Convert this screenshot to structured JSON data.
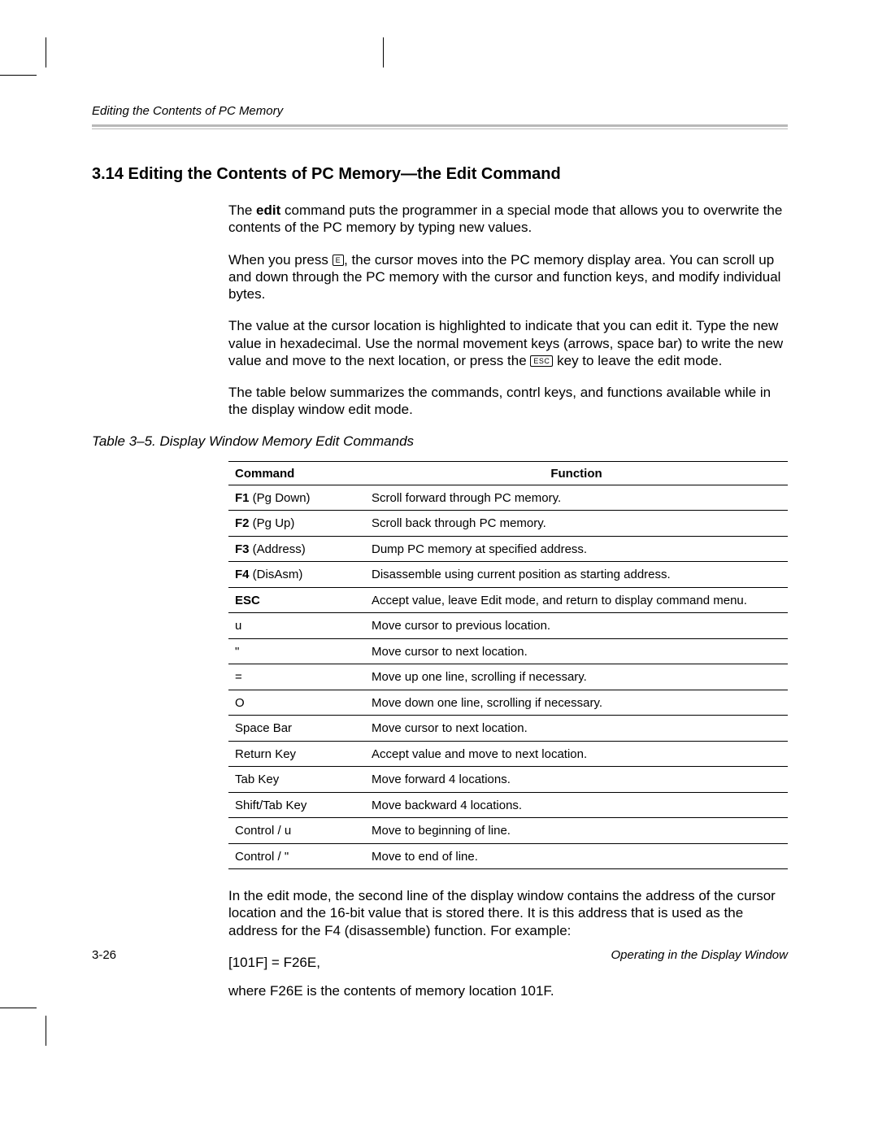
{
  "runningHead": "Editing the Contents of PC Memory",
  "heading": "3.14  Editing the Contents of PC Memory—the Edit Command",
  "para1_a": "The ",
  "para1_bold": "edit",
  "para1_b": " command puts the programmer in a special mode that allows you to overwrite the contents of the PC memory by typing new values.",
  "para2_a": "When you press ",
  "keycap_E": "E",
  "para2_b": ", the cursor moves into the PC memory display area. You can scroll up and down through the PC memory with the cursor and function keys, and modify individual bytes.",
  "para3_a": "The value at the cursor location is highlighted to indicate that you can edit it. Type the new value in hexadecimal. Use the normal movement keys (arrows, space bar) to write the new value and move to the next location, or press the ",
  "keycap_ESC": "ESC",
  "para3_b": " key to leave the edit mode.",
  "para4": "The table below summarizes the commands, contrl keys, and functions available while in the display window edit mode.",
  "tableCaption": "Table 3–5. Display Window Memory Edit Commands",
  "table": {
    "head": {
      "command": "Command",
      "function": "Function"
    },
    "rows": [
      {
        "cmd_b": "F1",
        "cmd_r": " (Pg Down)",
        "fn": "Scroll forward through PC memory."
      },
      {
        "cmd_b": "F2",
        "cmd_r": " (Pg Up)",
        "fn": "Scroll back through PC memory."
      },
      {
        "cmd_b": "F3",
        "cmd_r": " (Address)",
        "fn": "Dump PC memory at specified address."
      },
      {
        "cmd_b": "F4",
        "cmd_r": " (DisAsm)",
        "fn": "Disassemble using current position as starting address."
      },
      {
        "cmd_b": "ESC",
        "cmd_r": "",
        "fn": "Accept value, leave Edit mode, and return to display command menu."
      },
      {
        "cmd_b": "",
        "cmd_r": "u",
        "fn": "Move cursor to previous location."
      },
      {
        "cmd_b": "",
        "cmd_r": "\"",
        "fn": "Move cursor to next location."
      },
      {
        "cmd_b": "",
        "cmd_r": "=",
        "fn": "Move up one line, scrolling if necessary."
      },
      {
        "cmd_b": "",
        "cmd_r": "O",
        "fn": "Move down one line, scrolling if necessary."
      },
      {
        "cmd_b": "",
        "cmd_r": "Space Bar",
        "fn": "Move cursor to next location."
      },
      {
        "cmd_b": "",
        "cmd_r": "Return Key",
        "fn": "Accept value and move to next location."
      },
      {
        "cmd_b": "",
        "cmd_r": "Tab Key",
        "fn": "Move forward 4 locations."
      },
      {
        "cmd_b": "",
        "cmd_r": "Shift/Tab Key",
        "fn": "Move backward 4 locations."
      },
      {
        "cmd_b": "",
        "cmd_r": "Control / u",
        "fn": "Move to beginning of line."
      },
      {
        "cmd_b": "",
        "cmd_r": "Control / \"",
        "fn": "Move to end of line."
      }
    ]
  },
  "para5": "In the edit mode, the second line of the display window contains the address of the cursor location and the 16-bit value that is stored there. It is this address that is used as the address for the F4 (disassemble) function. For example:",
  "codeLine": "[101F]  =  F26E,",
  "para6": "where F26E is the contents of memory location 101F.",
  "pageNum": "3-26",
  "footerRight": "Operating in the Display Window"
}
